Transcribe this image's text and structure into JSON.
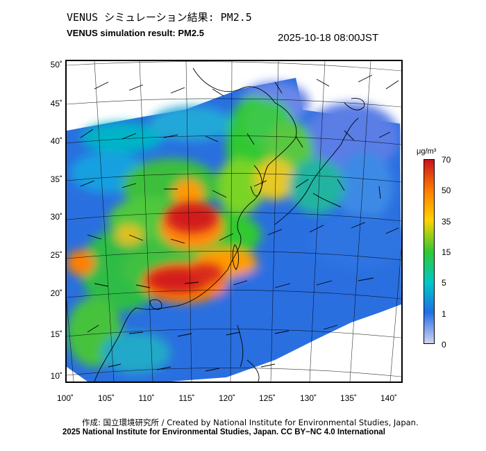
{
  "header": {
    "title_ja": "VENUS シミュレーション結果: PM2.5",
    "title_en": "VENUS simulation result: PM2.5",
    "timestamp": "2025-10-18 08:00JST"
  },
  "map": {
    "lat_ticks": [
      "50˚",
      "45˚",
      "40˚",
      "35˚",
      "30˚",
      "25˚",
      "20˚",
      "15˚",
      "10˚"
    ],
    "lon_ticks": [
      "100˚",
      "105˚",
      "110˚",
      "115˚",
      "120˚",
      "125˚",
      "130˚",
      "135˚",
      "140˚"
    ],
    "layers": [
      "PM2.5 concentration field",
      "wind vectors",
      "coastlines",
      "graticule"
    ]
  },
  "colorbar": {
    "unit": "μg/m³",
    "labels": [
      "70",
      "50",
      "35",
      "15",
      "5",
      "1",
      "0"
    ],
    "colors": [
      "#c8141e",
      "#ff7f00",
      "#ffd200",
      "#32c832",
      "#00c8c8",
      "#1e6ee6",
      "#d2d2f0"
    ]
  },
  "footer": {
    "credit_line": "作成: 国立環境研究所 / Created by National Institute for Environmental Studies, Japan.",
    "copyright_line": "2025 National Institute for Environmental Studies, Japan. CC BY−NC 4.0 International"
  }
}
